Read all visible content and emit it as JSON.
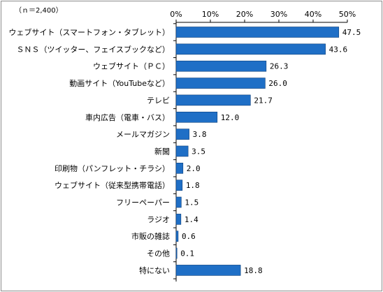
{
  "chart_data": {
    "type": "bar",
    "orientation": "horizontal",
    "note": "（ｎ＝2,400）",
    "title": "",
    "xlabel": "",
    "ylabel": "",
    "xlim": [
      0,
      50
    ],
    "x_ticks": [
      "0%",
      "10%",
      "20%",
      "30%",
      "40%",
      "50%"
    ],
    "grid": false,
    "legend": "none",
    "bar_color": "#1f6fc6",
    "categories": [
      "ウェブサイト（スマートフォン・タブレット）",
      "ＳＮＳ（ツイッター、フェイスブックなど）",
      "ウェブサイト（ＰＣ）",
      "動画サイト（YouTubeなど）",
      "テレビ",
      "車内広告（電車・バス）",
      "メールマガジン",
      "新聞",
      "印刷物（パンフレット・チラシ）",
      "ウェブサイト（従来型携帯電話）",
      "フリーペーパー",
      "ラジオ",
      "市販の雑誌",
      "その他",
      "特にない"
    ],
    "values": [
      47.5,
      43.6,
      26.3,
      26.0,
      21.7,
      12.0,
      3.8,
      3.5,
      2.0,
      1.8,
      1.5,
      1.4,
      0.6,
      0.1,
      18.8
    ],
    "value_labels": [
      "47.5",
      "43.6",
      "26.3",
      "26.0",
      "21.7",
      "12.0",
      "3.8",
      "3.5",
      "2.0",
      "1.8",
      "1.5",
      "1.4",
      "0.6",
      "0.1",
      "18.8"
    ]
  }
}
